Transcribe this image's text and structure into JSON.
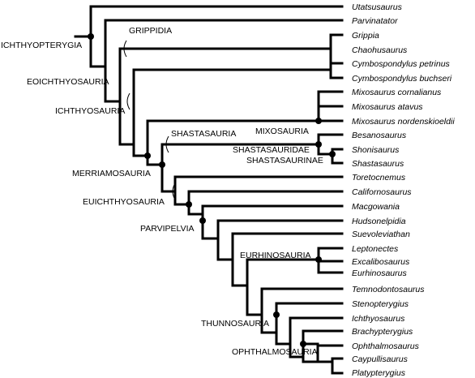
{
  "taxa": [
    "Utatsusaurus",
    "Parvinatator",
    "Grippia",
    "Chaohusaurus",
    "Cymbospondylus petrinus",
    "Cymbospondylus buchseri",
    "Mixosaurus cornalianus",
    "Mixosaurus atavus",
    "Mixosaurus nordenskioeldii",
    "Besanosaurus",
    "Shonisaurus",
    "Shastasaurus",
    "Toretocnemus",
    "Californosaurus",
    "Macgowania",
    "Hudsonelpidia",
    "Suevoleviathan",
    "Leptonectes",
    "Excalibosaurus",
    "Eurhinosaurus",
    "Temnodontosaurus",
    "Stenopterygius",
    "Ichthyosaurus",
    "Brachypterygius",
    "Ophthalmosaurus",
    "Caypullisaurus",
    "Platypterygius"
  ],
  "clades": {
    "ichthyopterygia": "ICHTHYOPTERYGIA",
    "grippidia": "GRIPPIDIA",
    "eoichthyosauria": "EOICHTHYOSAURIA",
    "ichthyosauria": "ICHTHYOSAURIA",
    "mixosauria": "MIXOSAURIA",
    "shastasauria": "SHASTASAURIA",
    "shastasauridae": "SHASTASAURIDAE",
    "shastasaurinae": "SHASTASAURINAE",
    "merriamosauria": "MERRIAMOSAURIA",
    "euichthyosauria": "EUICHTHYOSAURIA",
    "parvipelvia": "PARVIPELVIA",
    "eurhinosauria": "EURHINOSAURIA",
    "thunnosauria": "THUNNOSAURIA",
    "ophthalmosauria": "OPHTHALMOSAURIA"
  }
}
